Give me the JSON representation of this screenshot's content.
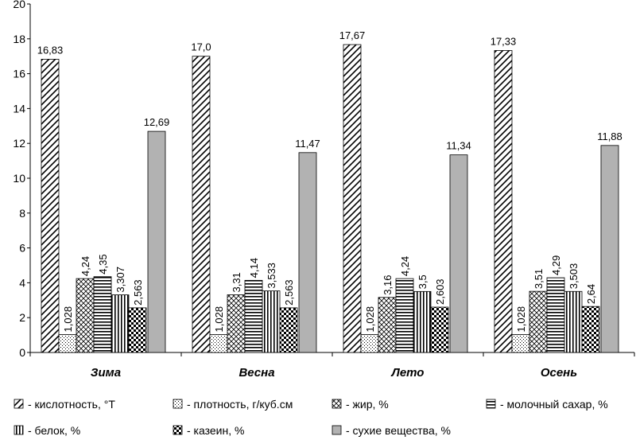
{
  "chart_data": {
    "type": "bar",
    "categories": [
      "Зима",
      "Весна",
      "Лето",
      "Осень"
    ],
    "ylim": [
      0,
      20
    ],
    "yticks": [
      0,
      2,
      4,
      6,
      8,
      10,
      12,
      14,
      16,
      18,
      20
    ],
    "legend": "bottom",
    "series": [
      {
        "name": "- кислотность, °Т",
        "color": "#ffffff",
        "values": [
          16.83,
          17.0,
          17.67,
          17.33
        ],
        "value_labels": [
          "16,83",
          "17,0",
          "17,67",
          "17,33"
        ]
      },
      {
        "name": "- плотность, г/куб.см",
        "color": "#ffffff",
        "values": [
          1.028,
          1.028,
          1.028,
          1.028
        ],
        "value_labels": [
          "1,028",
          "1,028",
          "1,028",
          "1,028"
        ]
      },
      {
        "name": "- жир, %",
        "color": "#ffffff",
        "values": [
          4.24,
          3.31,
          3.16,
          3.51
        ],
        "value_labels": [
          "4,24",
          "3,31",
          "3,16",
          "3,51"
        ]
      },
      {
        "name": "- молочный сахар, %",
        "color": "#ffffff",
        "values": [
          4.35,
          4.14,
          4.24,
          4.29
        ],
        "value_labels": [
          "4,35",
          "4,14",
          "4,24",
          "4,29"
        ]
      },
      {
        "name": "- белок, %",
        "color": "#ffffff",
        "values": [
          3.307,
          3.533,
          3.5,
          3.503
        ],
        "value_labels": [
          "3,307",
          "3,533",
          "3,5",
          "3,503"
        ]
      },
      {
        "name": "- казеин, %",
        "color": "#ffffff",
        "values": [
          2.563,
          2.563,
          2.603,
          2.64
        ],
        "value_labels": [
          "2,563",
          "2,563",
          "2,603",
          "2,64"
        ]
      },
      {
        "name": "- сухие вещества, %",
        "color": "#b2b2b2",
        "values": [
          12.69,
          11.47,
          11.34,
          11.88
        ],
        "value_labels": [
          "12,69",
          "11,47",
          "11,34",
          "11,88"
        ]
      }
    ]
  }
}
